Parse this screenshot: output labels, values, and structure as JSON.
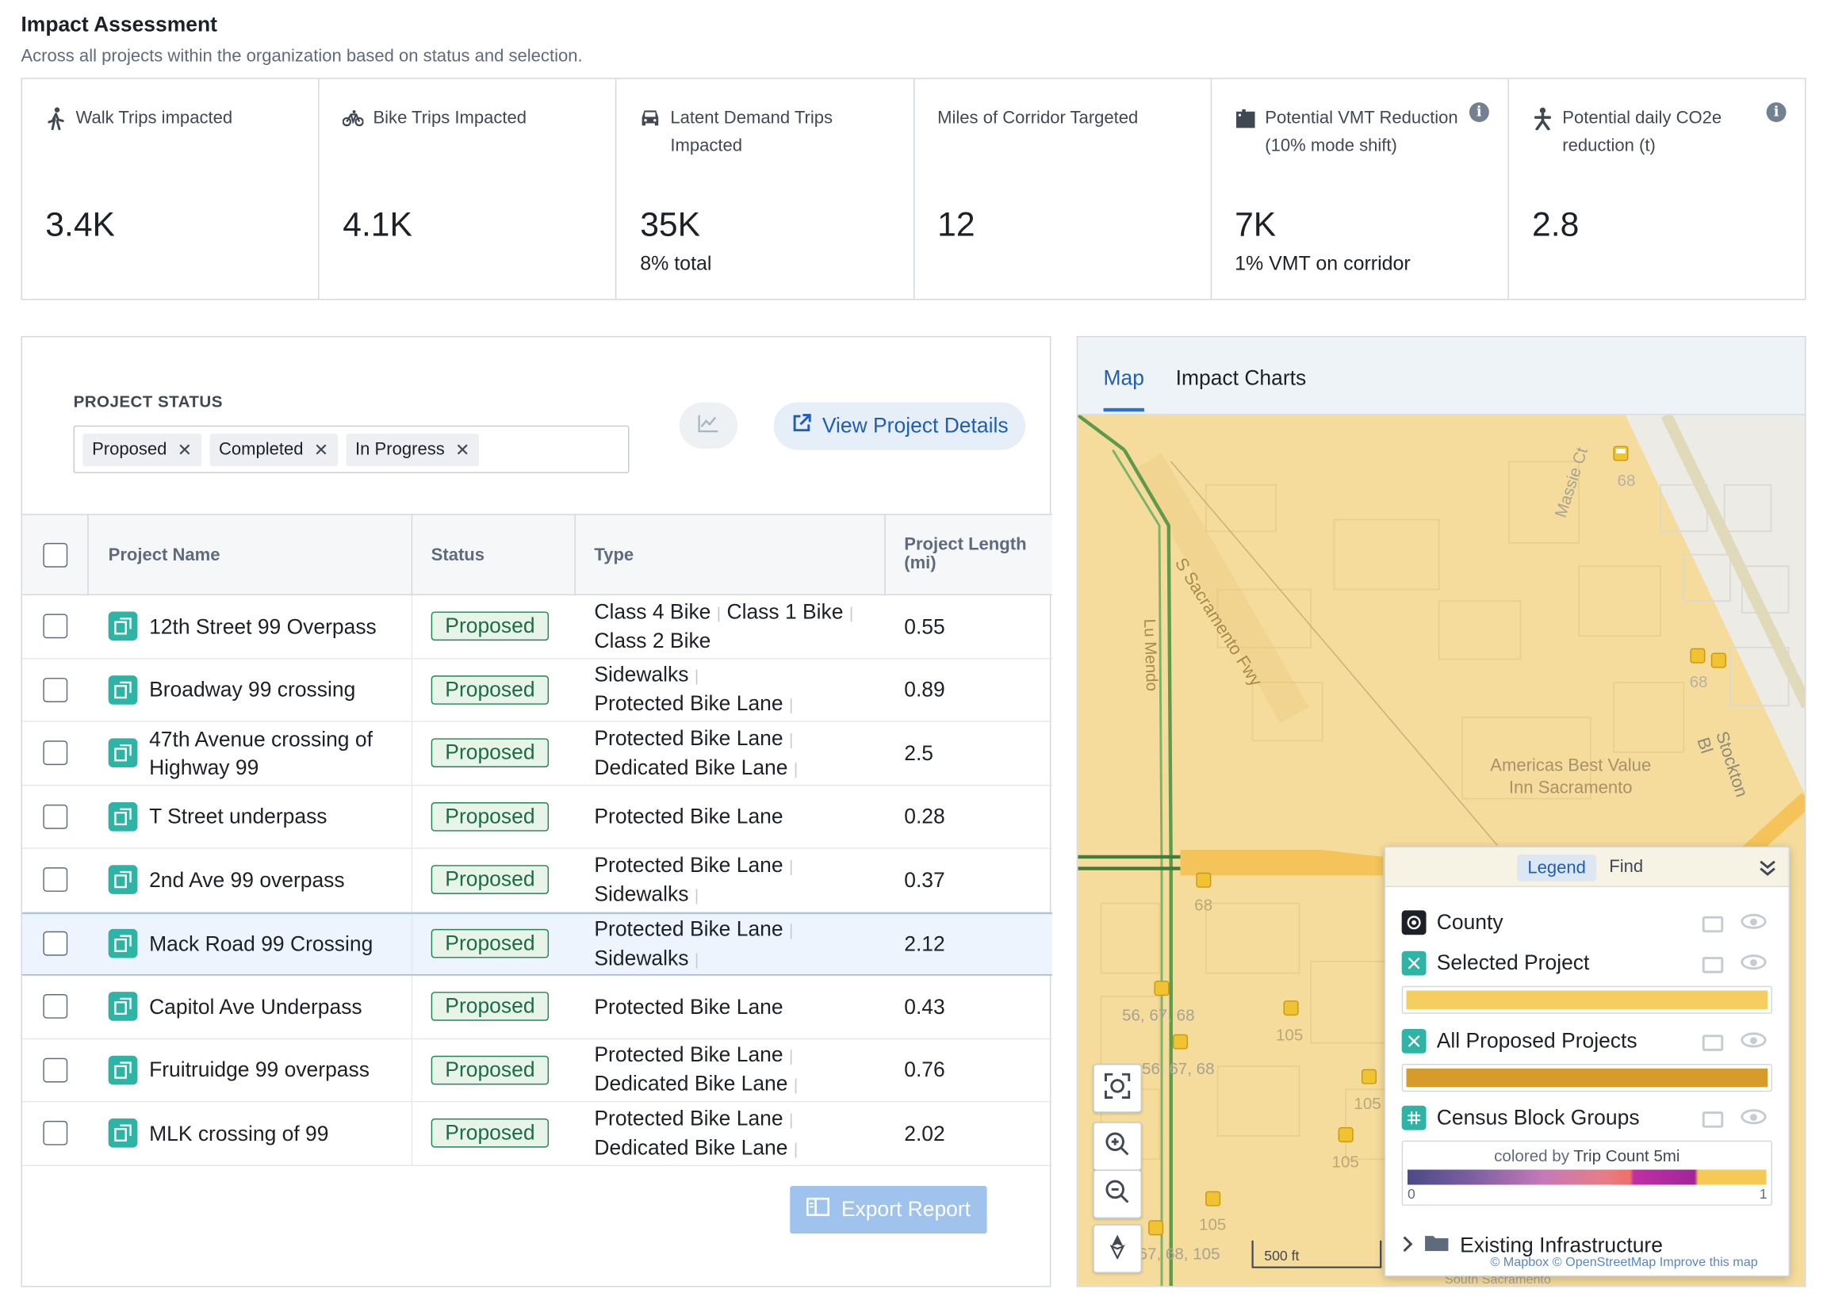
{
  "header": {
    "title": "Impact Assessment",
    "subtitle": "Across all projects within the organization based on status and selection."
  },
  "metrics": [
    {
      "icon": "walk-icon",
      "label": "Walk Trips impacted",
      "value": "3.4K",
      "note": ""
    },
    {
      "icon": "bike-icon",
      "label": "Bike Trips Impacted",
      "value": "4.1K",
      "note": ""
    },
    {
      "icon": "car-icon",
      "label": "Latent Demand Trips Impacted",
      "value": "35K",
      "note": "8% total"
    },
    {
      "icon": "",
      "label": "Miles of Corridor Targeted",
      "value": "12",
      "note": ""
    },
    {
      "icon": "vmt-icon",
      "label": "Potential VMT Reduction (10% mode shift)",
      "value": "7K",
      "note": "1% VMT on corridor",
      "info": "i"
    },
    {
      "icon": "person-icon",
      "label": "Potential daily CO2e reduction (t)",
      "value": "2.8",
      "note": "",
      "info": "i"
    }
  ],
  "filter": {
    "label": "PROJECT STATUS",
    "tags": [
      "Proposed",
      "Completed",
      "In Progress"
    ],
    "remove_glyph": "✕"
  },
  "actions": {
    "view_details": "View Project Details",
    "export": "Export Report"
  },
  "table": {
    "columns": {
      "name": "Project Name",
      "status": "Status",
      "type": "Type",
      "length": "Project Length (mi)"
    },
    "rows": [
      {
        "name": "12th Street 99 Overpass",
        "status": "Proposed",
        "types": [
          "Class 4 Bike",
          "Class 1 Bike",
          "Class 2 Bike"
        ],
        "length": "0.55"
      },
      {
        "name": "Broadway 99 crossing",
        "status": "Proposed",
        "types": [
          "Sidewalks",
          "Protected Bike Lane"
        ],
        "length": "0.89"
      },
      {
        "name": "47th Avenue crossing of Highway 99",
        "status": "Proposed",
        "types": [
          "Protected Bike Lane",
          "Dedicated Bike Lane"
        ],
        "length": "2.5"
      },
      {
        "name": "T Street underpass",
        "status": "Proposed",
        "types": [
          "Protected Bike Lane"
        ],
        "length": "0.28"
      },
      {
        "name": "2nd Ave 99 overpass",
        "status": "Proposed",
        "types": [
          "Protected Bike Lane",
          "Sidewalks"
        ],
        "length": "0.37"
      },
      {
        "name": "Mack Road 99 Crossing",
        "status": "Proposed",
        "types": [
          "Protected Bike Lane",
          "Sidewalks"
        ],
        "length": "2.12",
        "selected": true
      },
      {
        "name": "Capitol Ave Underpass",
        "status": "Proposed",
        "types": [
          "Protected Bike Lane"
        ],
        "length": "0.43"
      },
      {
        "name": "Fruitruidge 99 overpass",
        "status": "Proposed",
        "types": [
          "Protected Bike Lane",
          "Dedicated Bike Lane"
        ],
        "length": "0.76"
      },
      {
        "name": "MLK crossing of 99",
        "status": "Proposed",
        "types": [
          "Protected Bike Lane",
          "Dedicated Bike Lane"
        ],
        "length": "2.02"
      }
    ]
  },
  "tabs": {
    "map": "Map",
    "charts": "Impact Charts"
  },
  "map": {
    "labels": {
      "fwy": "S Sacramento Fwy",
      "lu": "Lu Mendo",
      "massie": "Massie Ct",
      "stockton": "Stockton Bl",
      "hotel_line1": "Americas Best Value",
      "hotel_line2": "Inn Sacramento",
      "south_sac": "South Sacramento"
    },
    "route_numbers": [
      "68",
      "68",
      "68",
      "56, 67, 68",
      "56, 67, 68",
      "105",
      "105",
      "105",
      "105",
      "67, 68, 105"
    ],
    "scale": "500 ft",
    "attribution": "© Mapbox © OpenStreetMap Improve this map",
    "colors": {
      "base": "#f5dc9c",
      "road": "#5e9a4c",
      "project": "#f6c955",
      "bg": "#ecebe6"
    }
  },
  "legend": {
    "tabs": {
      "legend": "Legend",
      "find": "Find"
    },
    "layers": [
      "County",
      "Selected Project",
      "All Proposed Projects",
      "Census Block Groups",
      "Existing Infrastructure"
    ],
    "colored_by_prefix": "colored by",
    "colored_by_field": "Trip Count 5mi",
    "min": "0",
    "max": "1",
    "colors": {
      "selected": "#f6cd60",
      "proposed": "#d79b2a"
    }
  }
}
